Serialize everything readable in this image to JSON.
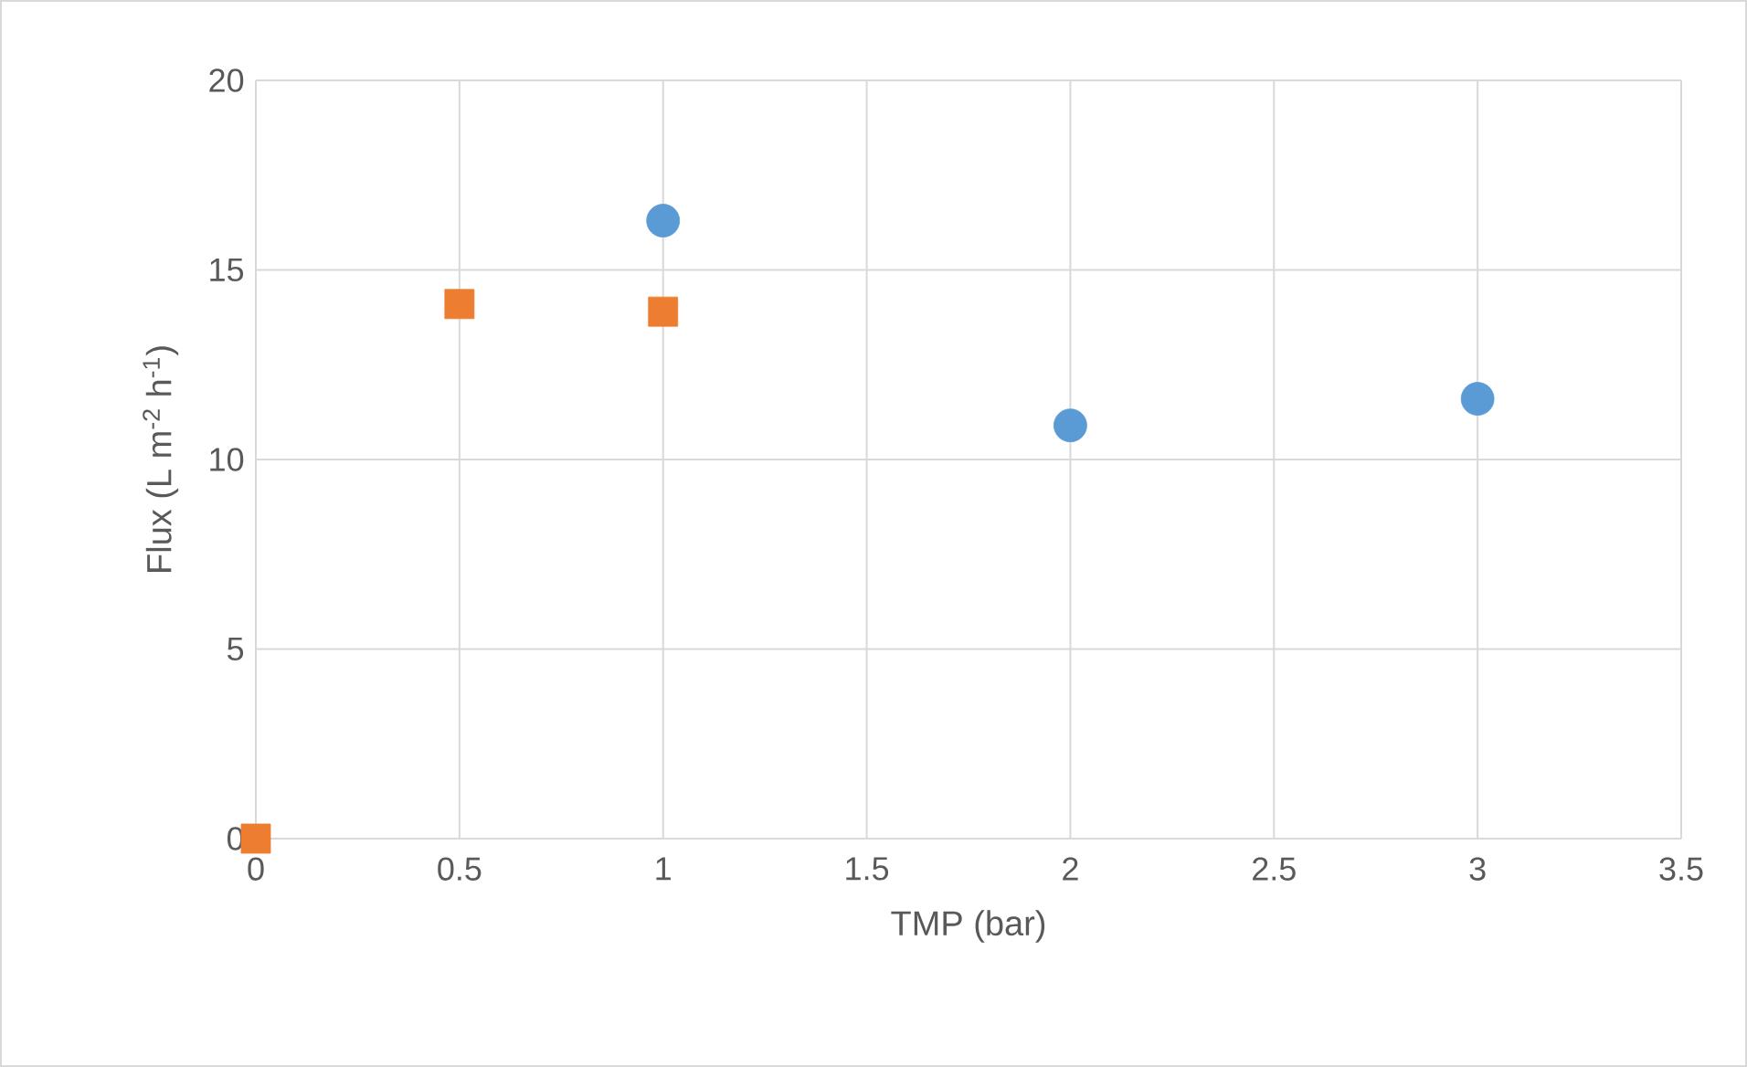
{
  "chart_data": {
    "type": "scatter",
    "xlabel": "TMP (bar)",
    "ylabel": "Flux (L m$^{-2}$ h$^{-1}$)",
    "xlim": [
      0,
      3.5
    ],
    "ylim": [
      0,
      20
    ],
    "xticks": [
      0,
      0.5,
      1,
      1.5,
      2,
      2.5,
      3,
      3.5
    ],
    "yticks": [
      0,
      5,
      10,
      15,
      20
    ],
    "grid": true,
    "series": [
      {
        "color": "#5b9bd5",
        "marker": "circle",
        "x": [
          1,
          2,
          3
        ],
        "values": [
          16.3,
          10.9,
          11.6
        ]
      },
      {
        "color": "#ed7d31",
        "marker": "square",
        "x": [
          0,
          0.5,
          1
        ],
        "values": [
          0,
          14.1,
          13.9
        ]
      }
    ]
  }
}
